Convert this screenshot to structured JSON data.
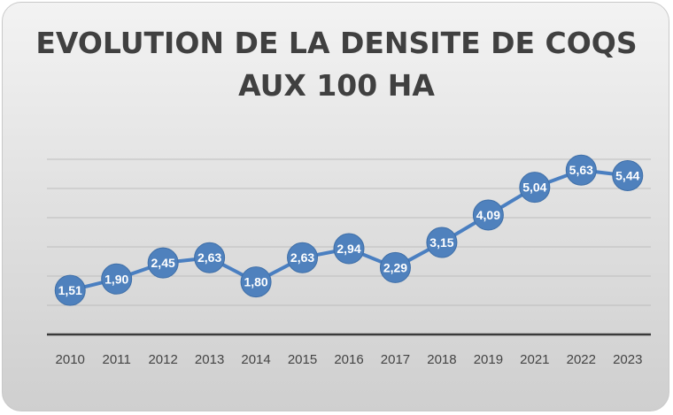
{
  "chart_data": {
    "type": "line",
    "title_line1": "EVOLUTION DE LA DENSITE DE COQS",
    "title_line2": "AUX 100 HA",
    "categories": [
      "2010",
      "2011",
      "2012",
      "2013",
      "2014",
      "2015",
      "2016",
      "2017",
      "2018",
      "2019",
      "2021",
      "2022",
      "2023"
    ],
    "values": [
      1.51,
      1.9,
      2.45,
      2.63,
      1.8,
      2.63,
      2.94,
      2.29,
      3.15,
      4.09,
      5.04,
      5.63,
      5.44
    ],
    "value_labels": [
      "1,51",
      "1,90",
      "2,45",
      "2,63",
      "1,80",
      "2,63",
      "2,94",
      "2,29",
      "3,15",
      "4,09",
      "5,04",
      "5,63",
      "5,44"
    ],
    "ylim": [
      0,
      6
    ],
    "grid": true,
    "colors": {
      "line": "#4a7fc1",
      "marker": "#4f81bd",
      "grid": "#bdbdbd",
      "axis": "#3a3a3a"
    }
  }
}
